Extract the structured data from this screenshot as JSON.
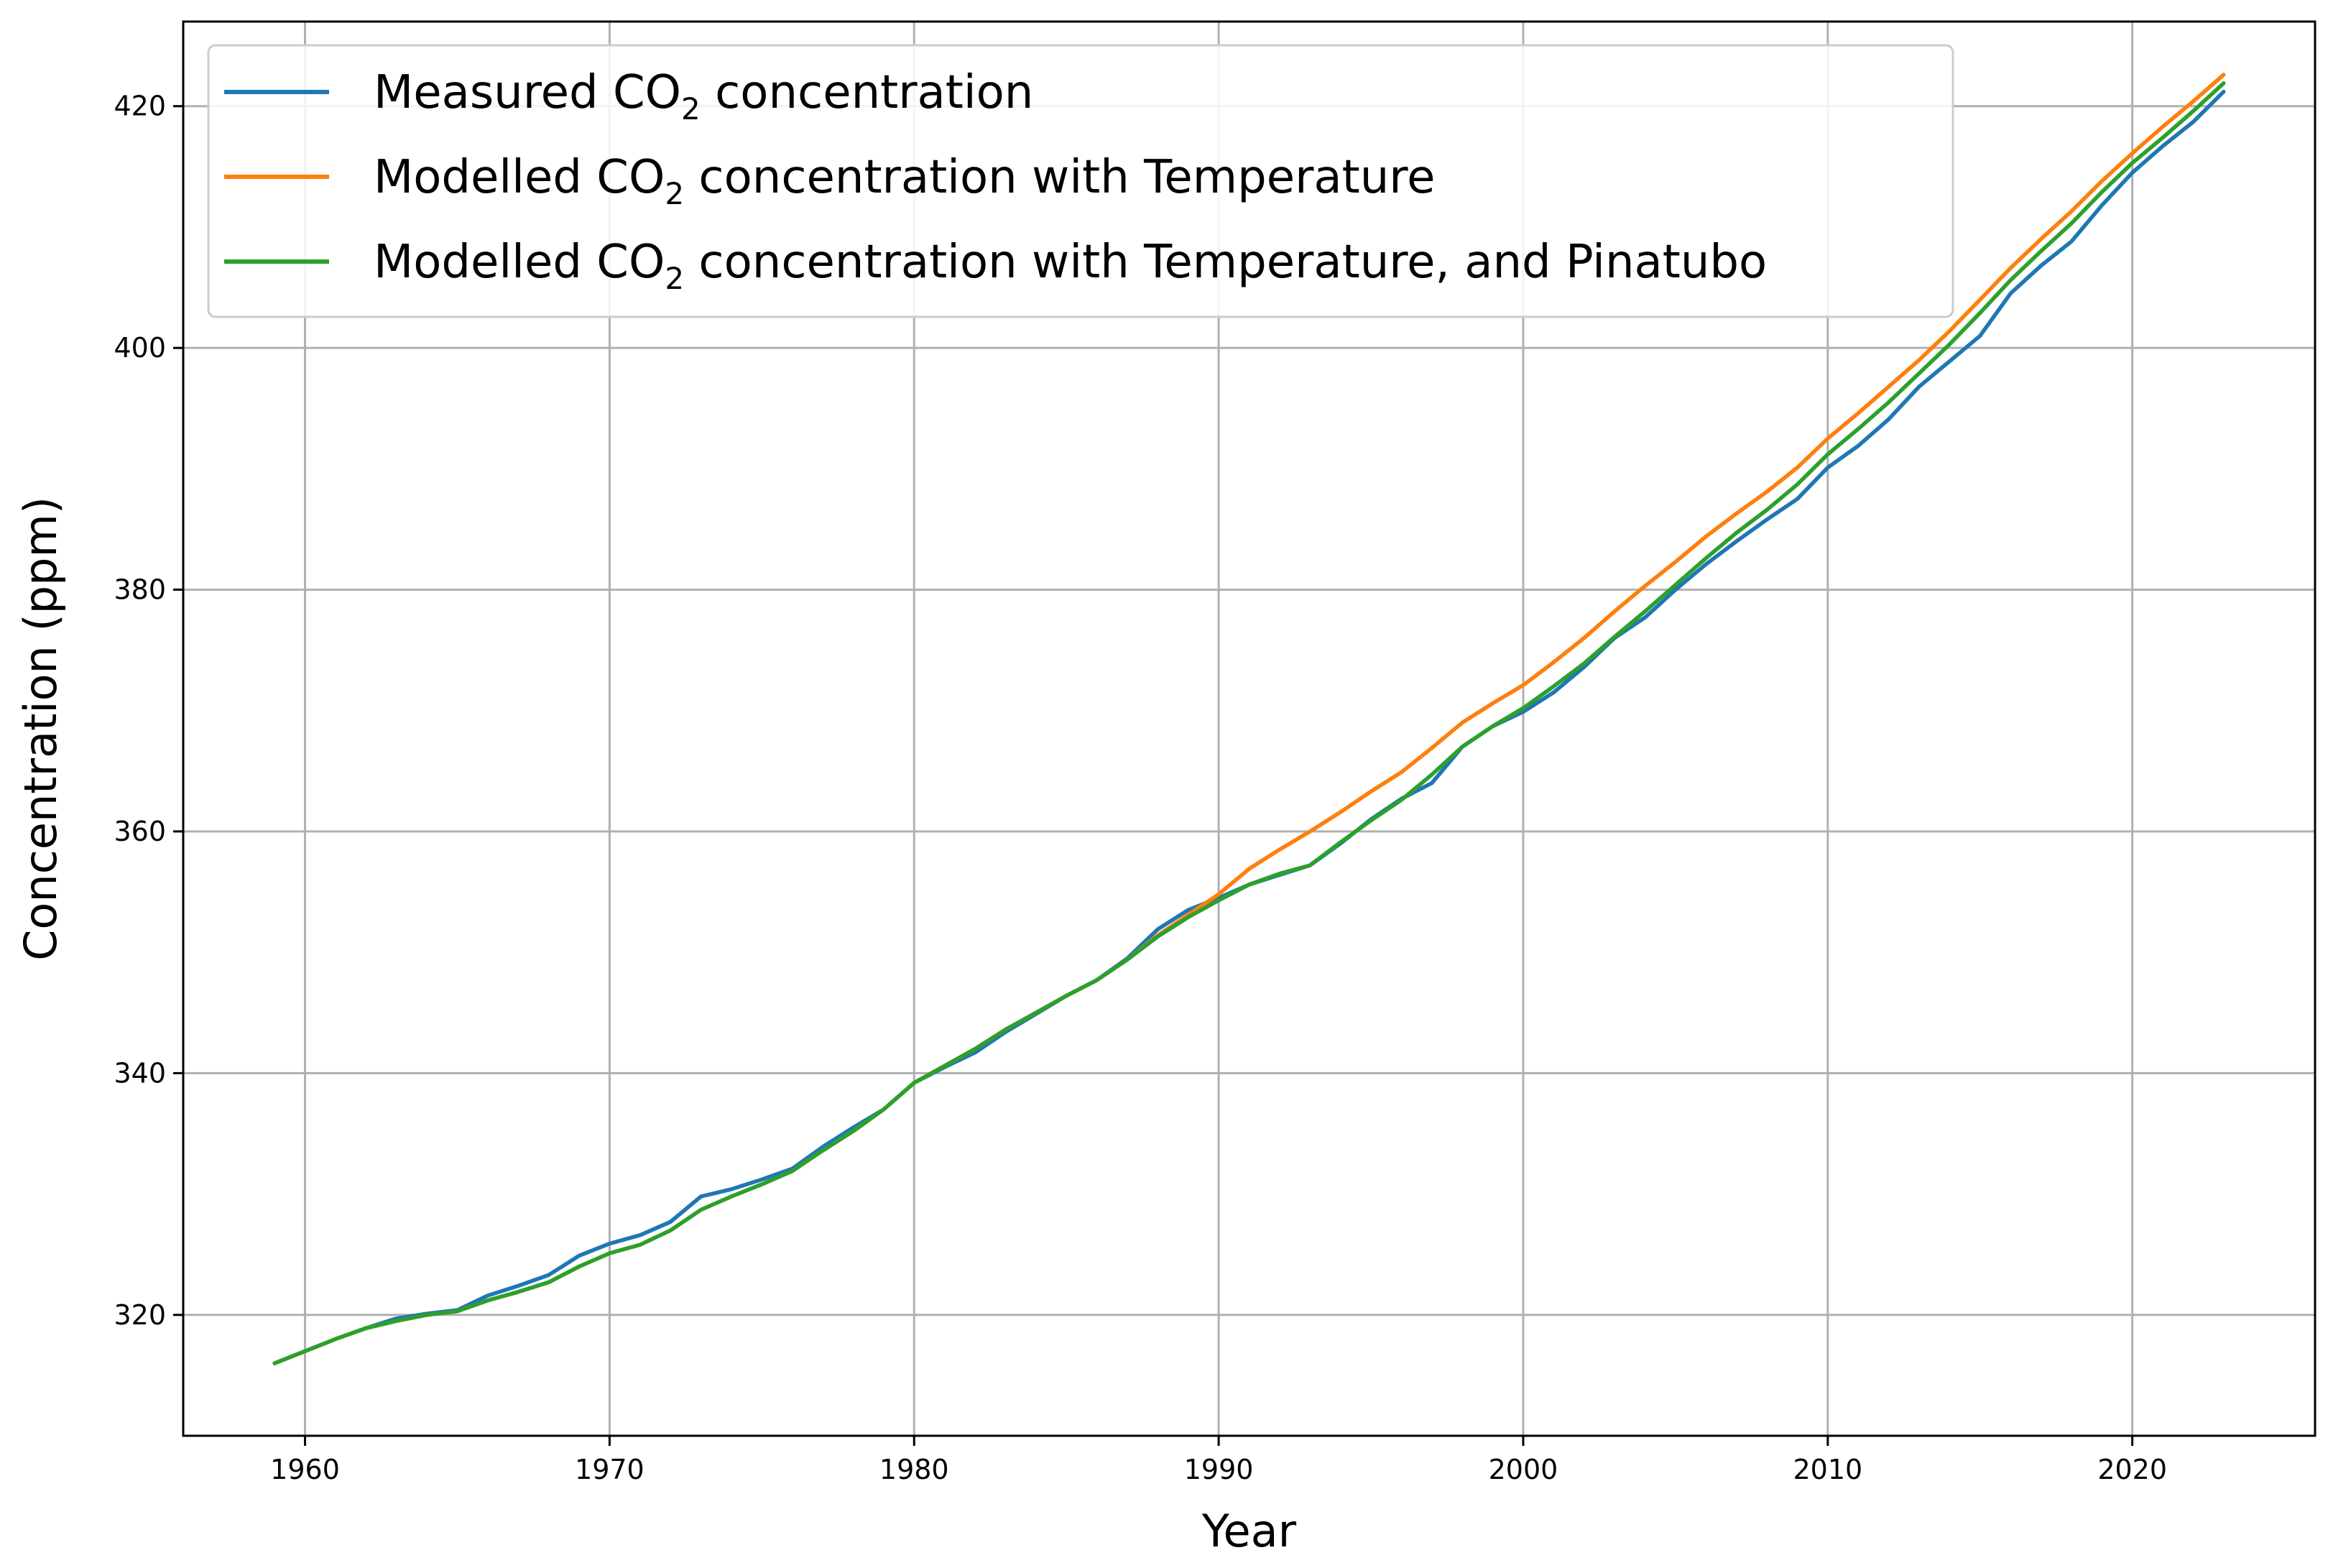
{
  "chart_data": {
    "type": "line",
    "title": "",
    "xlabel": "Year",
    "ylabel": "Concentration (ppm)",
    "xlim": [
      1956,
      2026
    ],
    "ylim": [
      310,
      427
    ],
    "xticks": [
      1960,
      1970,
      1980,
      1990,
      2000,
      2010,
      2020
    ],
    "yticks": [
      320,
      340,
      360,
      380,
      400,
      420
    ],
    "grid": true,
    "legend_position": "top-left",
    "series": [
      {
        "name": "Measured CO2 concentration",
        "label_main": "Measured CO",
        "label_sub": "2",
        "label_tail": " concentration",
        "color": "#1f77b4",
        "x": [
          1959,
          1960,
          1961,
          1962,
          1963,
          1964,
          1965,
          1966,
          1967,
          1968,
          1969,
          1970,
          1971,
          1972,
          1973,
          1974,
          1975,
          1976,
          1977,
          1978,
          1979,
          1980,
          1981,
          1982,
          1983,
          1984,
          1985,
          1986,
          1987,
          1988,
          1989,
          1990,
          1991,
          1992,
          1993,
          1994,
          1995,
          1996,
          1997,
          1998,
          1999,
          2000,
          2001,
          2002,
          2003,
          2004,
          2005,
          2006,
          2007,
          2008,
          2009,
          2010,
          2011,
          2012,
          2013,
          2014,
          2015,
          2016,
          2017,
          2018,
          2019,
          2020,
          2021,
          2022,
          2023
        ],
        "values": [
          316.0,
          317.0,
          318.0,
          318.9,
          319.7,
          320.1,
          320.4,
          321.6,
          322.4,
          323.3,
          324.9,
          325.9,
          326.6,
          327.7,
          329.8,
          330.4,
          331.2,
          332.1,
          333.9,
          335.5,
          337.0,
          339.2,
          340.5,
          341.7,
          343.4,
          344.9,
          346.4,
          347.7,
          349.5,
          351.9,
          353.5,
          354.5,
          355.6,
          356.4,
          357.2,
          359.0,
          361.0,
          362.7,
          364.0,
          367.0,
          368.7,
          369.9,
          371.5,
          373.6,
          376.0,
          377.7,
          380.0,
          382.1,
          384.0,
          385.8,
          387.5,
          390.1,
          391.9,
          394.1,
          396.8,
          398.9,
          401.0,
          404.5,
          406.8,
          408.8,
          411.8,
          414.5,
          416.7,
          418.7,
          421.2
        ]
      },
      {
        "name": "Modelled CO2 concentration with Temperature",
        "label_main": "Modelled CO",
        "label_sub": "2",
        "label_tail": " concentration with Temperature",
        "color": "#ff7f0e",
        "x": [
          1959,
          1960,
          1961,
          1962,
          1963,
          1964,
          1965,
          1966,
          1967,
          1968,
          1969,
          1970,
          1971,
          1972,
          1973,
          1974,
          1975,
          1976,
          1977,
          1978,
          1979,
          1980,
          1981,
          1982,
          1983,
          1984,
          1985,
          1986,
          1987,
          1988,
          1989,
          1990,
          1991,
          1992,
          1993,
          1994,
          1995,
          1996,
          1997,
          1998,
          1999,
          2000,
          2001,
          2002,
          2003,
          2004,
          2005,
          2006,
          2007,
          2008,
          2009,
          2010,
          2011,
          2012,
          2013,
          2014,
          2015,
          2016,
          2017,
          2018,
          2019,
          2020,
          2021,
          2022,
          2023
        ],
        "values": [
          316.0,
          317.0,
          318.0,
          318.9,
          319.5,
          320.0,
          320.3,
          321.2,
          321.9,
          322.7,
          324.0,
          325.1,
          325.8,
          327.0,
          328.7,
          329.8,
          330.8,
          331.9,
          333.6,
          335.2,
          337.0,
          339.2,
          340.6,
          342.0,
          343.6,
          345.0,
          346.4,
          347.7,
          349.4,
          351.4,
          353.1,
          354.8,
          356.9,
          358.5,
          360.0,
          361.6,
          363.3,
          364.9,
          366.9,
          369.0,
          370.6,
          372.1,
          374.0,
          376.0,
          378.2,
          380.3,
          382.3,
          384.4,
          386.3,
          388.1,
          390.1,
          392.5,
          394.6,
          396.8,
          399.0,
          401.4,
          404.0,
          406.6,
          409.0,
          411.3,
          413.8,
          416.1,
          418.3,
          420.4,
          422.6
        ]
      },
      {
        "name": "Modelled CO2 concentration with Temperature, and Pinatubo",
        "label_main": "Modelled CO",
        "label_sub": "2",
        "label_tail": " concentration with Temperature, and Pinatubo",
        "color": "#2ca02c",
        "x": [
          1959,
          1960,
          1961,
          1962,
          1963,
          1964,
          1965,
          1966,
          1967,
          1968,
          1969,
          1970,
          1971,
          1972,
          1973,
          1974,
          1975,
          1976,
          1977,
          1978,
          1979,
          1980,
          1981,
          1982,
          1983,
          1984,
          1985,
          1986,
          1987,
          1988,
          1989,
          1990,
          1991,
          1992,
          1993,
          1994,
          1995,
          1996,
          1997,
          1998,
          1999,
          2000,
          2001,
          2002,
          2003,
          2004,
          2005,
          2006,
          2007,
          2008,
          2009,
          2010,
          2011,
          2012,
          2013,
          2014,
          2015,
          2016,
          2017,
          2018,
          2019,
          2020,
          2021,
          2022,
          2023
        ],
        "values": [
          316.0,
          317.0,
          318.0,
          318.9,
          319.5,
          320.0,
          320.3,
          321.2,
          321.9,
          322.7,
          324.0,
          325.1,
          325.8,
          327.0,
          328.7,
          329.8,
          330.8,
          331.9,
          333.6,
          335.2,
          337.0,
          339.2,
          340.6,
          342.0,
          343.6,
          345.0,
          346.4,
          347.7,
          349.4,
          351.3,
          352.9,
          354.3,
          355.6,
          356.5,
          357.2,
          359.1,
          360.9,
          362.6,
          364.7,
          367.0,
          368.7,
          370.2,
          372.0,
          373.9,
          376.1,
          378.2,
          380.4,
          382.6,
          384.7,
          386.6,
          388.7,
          391.2,
          393.3,
          395.5,
          397.9,
          400.3,
          402.9,
          405.6,
          408.0,
          410.3,
          412.9,
          415.3,
          417.4,
          419.6,
          421.9
        ]
      }
    ]
  }
}
